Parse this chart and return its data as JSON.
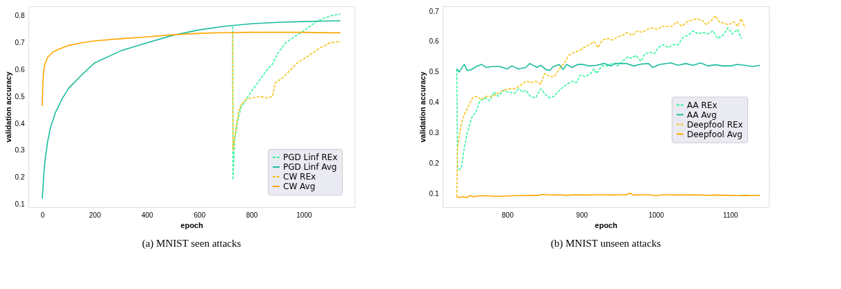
{
  "chart_data": [
    {
      "type": "line",
      "title": "(a) MNIST seen attacks",
      "xlabel": "epoch",
      "ylabel": "validation accuracy",
      "xlim": [
        -53,
        1194
      ],
      "ylim": [
        0.088,
        0.836
      ],
      "xticks": [
        0,
        200,
        400,
        600,
        800,
        1000
      ],
      "yticks": [
        0.1,
        0.2,
        0.3,
        0.4,
        0.5,
        0.6,
        0.7,
        0.8
      ],
      "grid": true,
      "legend": "bottom right",
      "series": [
        {
          "name": "PGD Linf REx",
          "color": "#33f59f",
          "line_style": "dashed",
          "x": [
            728,
            729,
            735,
            745,
            760,
            780,
            800,
            830,
            860,
            880,
            900,
            930,
            960,
            1000,
            1050,
            1100,
            1140
          ],
          "values": [
            0.76,
            0.19,
            0.33,
            0.4,
            0.46,
            0.49,
            0.52,
            0.56,
            0.6,
            0.62,
            0.66,
            0.7,
            0.72,
            0.745,
            0.78,
            0.8,
            0.807
          ]
        },
        {
          "name": "PGD Linf Avg",
          "color": "#1abc9c",
          "line_style": "solid",
          "x": [
            0,
            5,
            10,
            20,
            30,
            50,
            75,
            100,
            150,
            200,
            300,
            400,
            500,
            600,
            700,
            800,
            900,
            1000,
            1100,
            1140
          ],
          "values": [
            0.12,
            0.2,
            0.26,
            0.33,
            0.38,
            0.44,
            0.49,
            0.53,
            0.58,
            0.625,
            0.67,
            0.7,
            0.728,
            0.748,
            0.762,
            0.771,
            0.776,
            0.779,
            0.781,
            0.782
          ]
        },
        {
          "name": "CW REx",
          "color": "#f9c21b",
          "line_style": "dashed",
          "x": [
            728,
            729,
            740,
            750,
            760,
            780,
            800,
            830,
            860,
            880,
            890,
            920,
            950,
            980,
            1000,
            1030,
            1060,
            1100,
            1140
          ],
          "values": [
            0.74,
            0.3,
            0.38,
            0.44,
            0.47,
            0.49,
            0.495,
            0.5,
            0.495,
            0.5,
            0.55,
            0.57,
            0.6,
            0.63,
            0.64,
            0.66,
            0.68,
            0.7,
            0.705
          ]
        },
        {
          "name": "CW Avg",
          "color": "#ffa500",
          "line_style": "solid",
          "x": [
            0,
            2,
            5,
            10,
            20,
            40,
            60,
            100,
            150,
            200,
            300,
            400,
            500,
            600,
            700,
            800,
            900,
            1000,
            1100,
            1140
          ],
          "values": [
            0.465,
            0.55,
            0.59,
            0.62,
            0.645,
            0.665,
            0.675,
            0.69,
            0.7,
            0.707,
            0.715,
            0.722,
            0.73,
            0.735,
            0.738,
            0.739,
            0.739,
            0.739,
            0.737,
            0.737
          ]
        }
      ]
    },
    {
      "type": "line",
      "title": "(b) MNIST unseen attacks",
      "xlabel": "epoch",
      "ylabel": "validation accuracy",
      "xlim": [
        713,
        1152
      ],
      "ylim": [
        0.056,
        0.716
      ],
      "xticks": [
        800,
        900,
        1000,
        1100
      ],
      "yticks": [
        0.1,
        0.2,
        0.3,
        0.4,
        0.5,
        0.6,
        0.7
      ],
      "grid": true,
      "legend": "right",
      "series": [
        {
          "name": "AA REx",
          "color": "#33f59f",
          "line_style": "dashed",
          "x": [
            732,
            733,
            735,
            738,
            742,
            746,
            752,
            758,
            763,
            770,
            776,
            782,
            788,
            795,
            800,
            810,
            815,
            820,
            825,
            831,
            838,
            845,
            852,
            857,
            863,
            870,
            880,
            888,
            893,
            898,
            905,
            912,
            917,
            920,
            927,
            935,
            942,
            948,
            955,
            962,
            967,
            973,
            980,
            985,
            993,
            998,
            1003,
            1010,
            1017,
            1023,
            1030,
            1037,
            1043,
            1050,
            1057,
            1063,
            1070,
            1077,
            1083,
            1090,
            1097,
            1103,
            1110,
            1115
          ],
          "values": [
            0.51,
            0.19,
            0.18,
            0.185,
            0.25,
            0.3,
            0.35,
            0.37,
            0.405,
            0.415,
            0.405,
            0.435,
            0.42,
            0.44,
            0.435,
            0.43,
            0.445,
            0.435,
            0.44,
            0.42,
            0.415,
            0.445,
            0.425,
            0.415,
            0.42,
            0.44,
            0.46,
            0.47,
            0.465,
            0.49,
            0.485,
            0.495,
            0.51,
            0.495,
            0.52,
            0.52,
            0.53,
            0.52,
            0.535,
            0.55,
            0.545,
            0.555,
            0.535,
            0.56,
            0.565,
            0.56,
            0.58,
            0.59,
            0.58,
            0.59,
            0.59,
            0.615,
            0.62,
            0.635,
            0.625,
            0.63,
            0.625,
            0.635,
            0.61,
            0.62,
            0.645,
            0.625,
            0.64,
            0.61
          ]
        },
        {
          "name": "AA Avg",
          "color": "#1abc9c",
          "line_style": "solid",
          "x": [
            732,
            735,
            742,
            746,
            752,
            758,
            765,
            772,
            780,
            790,
            800,
            806,
            815,
            825,
            830,
            840,
            845,
            852,
            857,
            862,
            870,
            875,
            880,
            887,
            895,
            902,
            910,
            920,
            930,
            940,
            945,
            960,
            970,
            980,
            990,
            996,
            1005,
            1020,
            1030,
            1040,
            1050,
            1060,
            1070,
            1080,
            1090,
            1100,
            1110,
            1120,
            1130,
            1140
          ],
          "values": [
            0.51,
            0.5,
            0.525,
            0.505,
            0.508,
            0.518,
            0.525,
            0.515,
            0.518,
            0.518,
            0.51,
            0.52,
            0.51,
            0.515,
            0.528,
            0.515,
            0.522,
            0.508,
            0.505,
            0.518,
            0.525,
            0.508,
            0.525,
            0.515,
            0.525,
            0.525,
            0.52,
            0.522,
            0.528,
            0.52,
            0.528,
            0.528,
            0.52,
            0.526,
            0.528,
            0.515,
            0.525,
            0.53,
            0.522,
            0.528,
            0.522,
            0.53,
            0.52,
            0.524,
            0.52,
            0.52,
            0.525,
            0.522,
            0.518,
            0.522
          ]
        },
        {
          "name": "Deepfool REx",
          "color": "#f9c21b",
          "line_style": "dashed",
          "x": [
            732,
            733,
            738,
            742,
            748,
            753,
            758,
            765,
            772,
            780,
            787,
            795,
            802,
            810,
            817,
            825,
            832,
            838,
            845,
            850,
            857,
            863,
            870,
            877,
            883,
            890,
            897,
            903,
            910,
            917,
            922,
            928,
            935,
            942,
            948,
            955,
            962,
            968,
            975,
            982,
            988,
            995,
            1002,
            1008,
            1015,
            1022,
            1028,
            1035,
            1042,
            1048,
            1055,
            1062,
            1068,
            1075,
            1080,
            1085,
            1092,
            1098,
            1105,
            1110,
            1115,
            1120
          ],
          "values": [
            0.09,
            0.25,
            0.33,
            0.36,
            0.39,
            0.415,
            0.42,
            0.41,
            0.42,
            0.42,
            0.43,
            0.44,
            0.445,
            0.445,
            0.455,
            0.47,
            0.465,
            0.47,
            0.46,
            0.495,
            0.485,
            0.485,
            0.51,
            0.53,
            0.555,
            0.565,
            0.57,
            0.58,
            0.59,
            0.6,
            0.58,
            0.605,
            0.61,
            0.605,
            0.615,
            0.62,
            0.63,
            0.62,
            0.635,
            0.63,
            0.64,
            0.645,
            0.64,
            0.65,
            0.65,
            0.65,
            0.665,
            0.65,
            0.665,
            0.67,
            0.675,
            0.67,
            0.655,
            0.67,
            0.685,
            0.665,
            0.66,
            0.655,
            0.665,
            0.65,
            0.675,
            0.645
          ]
        },
        {
          "name": "Deepfool Avg",
          "color": "#ffa500",
          "line_style": "solid",
          "x": [
            732,
            735,
            740,
            745,
            750,
            755,
            760,
            770,
            780,
            790,
            800,
            810,
            820,
            830,
            840,
            850,
            860,
            870,
            880,
            890,
            900,
            910,
            920,
            930,
            940,
            950,
            960,
            965,
            970,
            980,
            990,
            1000,
            1010,
            1020,
            1030,
            1040,
            1050,
            1060,
            1070,
            1080,
            1090,
            1100,
            1110,
            1120,
            1130,
            1140
          ],
          "values": [
            0.09,
            0.088,
            0.09,
            0.088,
            0.094,
            0.09,
            0.093,
            0.094,
            0.092,
            0.092,
            0.093,
            0.094,
            0.094,
            0.095,
            0.095,
            0.098,
            0.096,
            0.097,
            0.095,
            0.097,
            0.096,
            0.096,
            0.097,
            0.097,
            0.096,
            0.097,
            0.097,
            0.102,
            0.096,
            0.097,
            0.097,
            0.094,
            0.097,
            0.097,
            0.096,
            0.097,
            0.096,
            0.096,
            0.095,
            0.096,
            0.095,
            0.095,
            0.094,
            0.095,
            0.094,
            0.095
          ]
        }
      ]
    }
  ]
}
